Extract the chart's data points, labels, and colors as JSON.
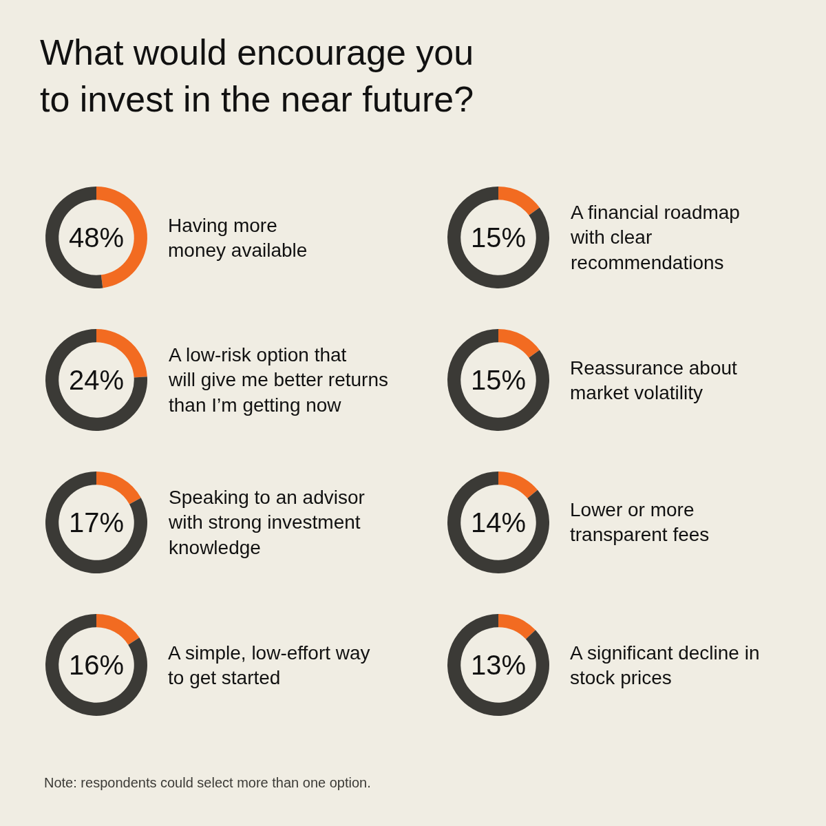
{
  "chart_data": [
    {
      "type": "other",
      "title": "What would encourage you\nto invest in the near future?",
      "annotations": [
        "Note: respondents could select more than one option."
      ]
    },
    {
      "type": "donut",
      "title": "Having more\nmoney available",
      "categories": [
        null,
        null
      ],
      "values": [
        48,
        52
      ],
      "colors": [
        "#f26b21",
        "#3b3a36"
      ],
      "annotations": [
        "48%"
      ]
    },
    {
      "type": "donut",
      "title": "A financial roadmap\nwith clear\nrecommendations",
      "categories": [
        null,
        null
      ],
      "values": [
        15,
        85
      ],
      "colors": [
        "#f26b21",
        "#3b3a36"
      ],
      "annotations": [
        "15%"
      ]
    },
    {
      "type": "donut",
      "title": "A low-risk option that\nwill give me better returns\nthan I’m getting now",
      "categories": [
        null,
        null
      ],
      "values": [
        24,
        76
      ],
      "colors": [
        "#f26b21",
        "#3b3a36"
      ],
      "annotations": [
        "24%"
      ]
    },
    {
      "type": "donut",
      "title": "Reassurance about\nmarket volatility",
      "categories": [
        null,
        null
      ],
      "values": [
        15,
        85
      ],
      "colors": [
        "#f26b21",
        "#3b3a36"
      ],
      "annotations": [
        "15%"
      ]
    },
    {
      "type": "donut",
      "title": "Speaking to an advisor\nwith strong investment\nknowledge",
      "categories": [
        null,
        null
      ],
      "values": [
        17,
        83
      ],
      "colors": [
        "#f26b21",
        "#3b3a36"
      ],
      "annotations": [
        "17%"
      ]
    },
    {
      "type": "donut",
      "title": "Lower or more\ntransparent fees",
      "categories": [
        null,
        null
      ],
      "values": [
        14,
        86
      ],
      "colors": [
        "#f26b21",
        "#3b3a36"
      ],
      "annotations": [
        "14%"
      ]
    },
    {
      "type": "donut",
      "title": "A simple, low-effort way\nto get started",
      "categories": [
        null,
        null
      ],
      "values": [
        16,
        84
      ],
      "colors": [
        "#f26b21",
        "#3b3a36"
      ],
      "annotations": [
        "16%"
      ]
    },
    {
      "type": "donut",
      "title": "A significant decline in\nstock prices",
      "categories": [
        null,
        null
      ],
      "values": [
        13,
        87
      ],
      "colors": [
        "#f26b21",
        "#3b3a36"
      ],
      "annotations": [
        "13%"
      ]
    }
  ]
}
